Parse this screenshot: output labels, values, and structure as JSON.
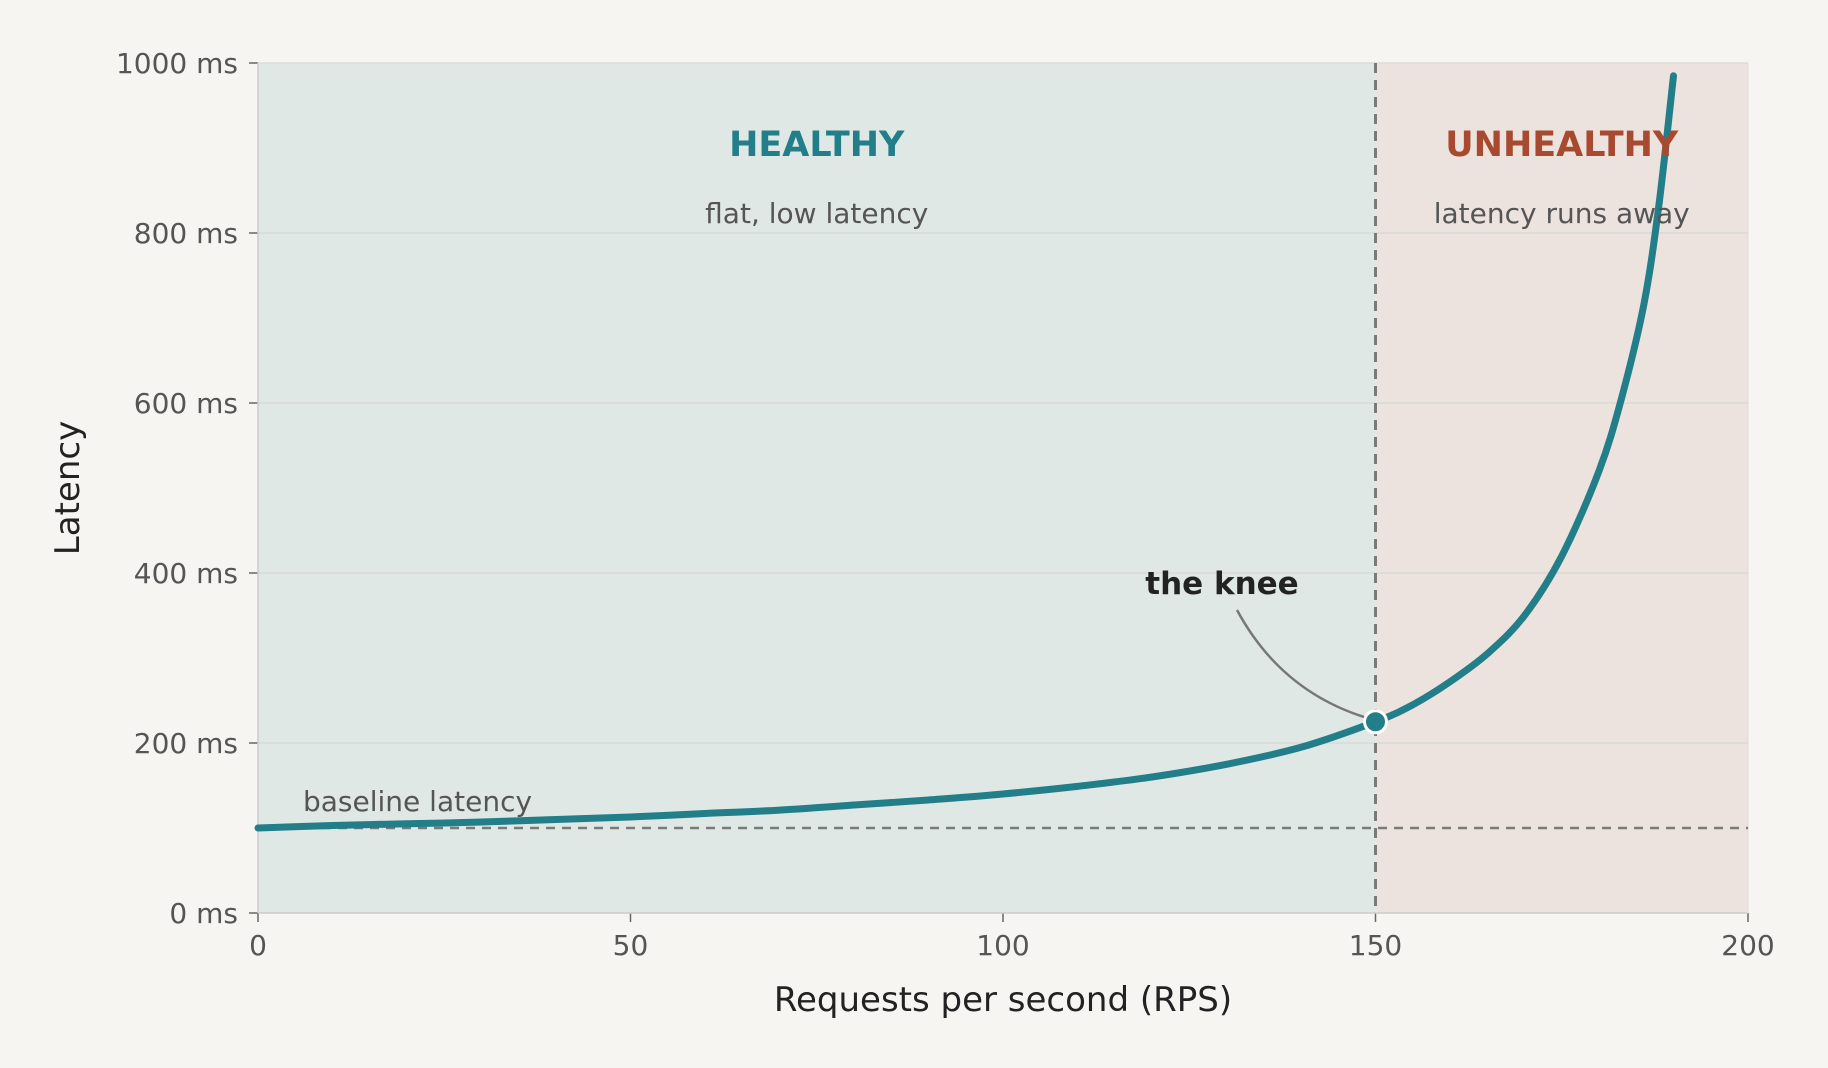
{
  "chart_data": {
    "type": "line",
    "xlabel": "Requests per second (RPS)",
    "ylabel": "Latency",
    "xlim": [
      0,
      200
    ],
    "ylim": [
      0,
      1000
    ],
    "x_ticks": [
      "0",
      "50",
      "100",
      "150",
      "200"
    ],
    "y_ticks": [
      "0 ms",
      "200 ms",
      "400 ms",
      "600 ms",
      "800 ms",
      "1000 ms"
    ],
    "grid": "horizontal",
    "series": [
      {
        "x": [
          0,
          10,
          20,
          30,
          40,
          50,
          60,
          70,
          80,
          90,
          100,
          110,
          120,
          130,
          140,
          150,
          155,
          160,
          165,
          170,
          175,
          180,
          183,
          186,
          188,
          190
        ],
        "y": [
          100,
          103,
          105,
          107,
          110,
          113,
          117,
          121,
          127,
          133,
          140,
          149,
          160,
          175,
          195,
          225,
          245,
          272,
          305,
          350,
          420,
          520,
          605,
          715,
          830,
          985
        ],
        "color": "#227e88"
      }
    ],
    "baseline": {
      "y": 100,
      "label": "baseline latency"
    },
    "threshold": {
      "x": 150
    },
    "knee": {
      "x": 150,
      "y": 225,
      "label": "the knee"
    },
    "regions": [
      {
        "title": "HEALTHY",
        "subtitle": "flat, low latency",
        "x_range": [
          0,
          150
        ],
        "color": "#227e88",
        "fill": "#e0e8e5"
      },
      {
        "title": "UNHEALTHY",
        "subtitle": "latency runs away",
        "x_range": [
          150,
          200
        ],
        "color": "#a84a30",
        "fill": "#ece3de"
      }
    ]
  }
}
